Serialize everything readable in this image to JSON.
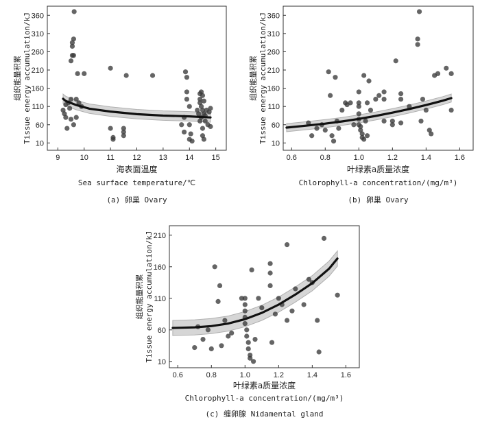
{
  "chart_data": [
    {
      "id": "a",
      "type": "scatter",
      "caption": "(a) 卵巢 Ovary",
      "xlabel_cn": "海表面温度",
      "xlabel_en": "Sea surface temperature/℃",
      "ylabel_cn": "组织能量积累",
      "ylabel_en": "Tissue energy accumulation/kJ",
      "xlim": [
        8.6,
        15.4
      ],
      "ylim": [
        -10,
        385
      ],
      "xticks": [
        9,
        10,
        11,
        12,
        13,
        14,
        15
      ],
      "yticks": [
        10,
        60,
        110,
        160,
        210,
        260,
        310,
        360
      ],
      "points": [
        [
          9.2,
          100
        ],
        [
          9.25,
          90
        ],
        [
          9.3,
          115
        ],
        [
          9.3,
          80
        ],
        [
          9.35,
          50
        ],
        [
          9.4,
          120
        ],
        [
          9.45,
          105
        ],
        [
          9.5,
          235
        ],
        [
          9.5,
          130
        ],
        [
          9.5,
          75
        ],
        [
          9.55,
          285
        ],
        [
          9.55,
          275
        ],
        [
          9.55,
          250
        ],
        [
          9.6,
          295
        ],
        [
          9.6,
          250
        ],
        [
          9.6,
          60
        ],
        [
          9.62,
          370
        ],
        [
          9.7,
          130
        ],
        [
          9.7,
          80
        ],
        [
          9.75,
          200
        ],
        [
          9.8,
          120
        ],
        [
          9.9,
          110
        ],
        [
          10.0,
          200
        ],
        [
          11.0,
          215
        ],
        [
          11.0,
          50
        ],
        [
          11.1,
          25
        ],
        [
          11.1,
          20
        ],
        [
          11.5,
          50
        ],
        [
          11.5,
          40
        ],
        [
          11.5,
          30
        ],
        [
          11.6,
          195
        ],
        [
          12.6,
          195
        ],
        [
          13.7,
          60
        ],
        [
          13.8,
          80
        ],
        [
          13.8,
          40
        ],
        [
          13.85,
          205
        ],
        [
          13.9,
          190
        ],
        [
          13.9,
          150
        ],
        [
          13.9,
          130
        ],
        [
          14.0,
          110
        ],
        [
          14.0,
          60
        ],
        [
          14.0,
          20
        ],
        [
          14.05,
          35
        ],
        [
          14.1,
          15
        ],
        [
          14.3,
          100
        ],
        [
          14.35,
          90
        ],
        [
          14.4,
          145
        ],
        [
          14.4,
          130
        ],
        [
          14.4,
          120
        ],
        [
          14.4,
          70
        ],
        [
          14.45,
          150
        ],
        [
          14.45,
          110
        ],
        [
          14.45,
          80
        ],
        [
          14.5,
          140
        ],
        [
          14.5,
          100
        ],
        [
          14.5,
          50
        ],
        [
          14.5,
          30
        ],
        [
          14.55,
          125
        ],
        [
          14.55,
          90
        ],
        [
          14.55,
          20
        ],
        [
          14.6,
          85
        ],
        [
          14.6,
          70
        ],
        [
          14.65,
          100
        ],
        [
          14.7,
          60
        ],
        [
          14.75,
          95
        ],
        [
          14.8,
          105
        ],
        [
          14.8,
          55
        ]
      ],
      "fit": {
        "x": [
          9.2,
          9.3,
          9.7,
          10.2,
          11.0,
          12.0,
          13.0,
          14.0,
          14.8
        ],
        "y": [
          131,
          125,
          114,
          104,
          96,
          89,
          85,
          83,
          80
        ],
        "band": 13
      }
    },
    {
      "id": "b",
      "type": "scatter",
      "caption": "(b) 卵巢 Ovary",
      "xlabel_cn": "叶绿素a质量浓度",
      "xlabel_en": "Chlorophyll-a concentration/(mg/m³)",
      "ylabel_cn": "组织能量积累",
      "ylabel_en": "Tissue energy accumulation/kJ",
      "xlim": [
        0.55,
        1.68
      ],
      "ylim": [
        -10,
        385
      ],
      "xticks": [
        "0.6",
        "0.8",
        "1.0",
        "1.2",
        "1.4",
        "1.6"
      ],
      "yticks": [
        10,
        60,
        110,
        160,
        210,
        260,
        310,
        360
      ],
      "points": [
        [
          0.7,
          65
        ],
        [
          0.72,
          30
        ],
        [
          0.75,
          50
        ],
        [
          0.78,
          60
        ],
        [
          0.8,
          45
        ],
        [
          0.82,
          205
        ],
        [
          0.83,
          140
        ],
        [
          0.84,
          30
        ],
        [
          0.85,
          15
        ],
        [
          0.86,
          190
        ],
        [
          0.87,
          70
        ],
        [
          0.88,
          50
        ],
        [
          0.9,
          100
        ],
        [
          0.92,
          120
        ],
        [
          0.93,
          115
        ],
        [
          0.95,
          120
        ],
        [
          0.97,
          60
        ],
        [
          1.0,
          150
        ],
        [
          1.0,
          120
        ],
        [
          1.0,
          110
        ],
        [
          1.0,
          90
        ],
        [
          1.0,
          75
        ],
        [
          1.0,
          60
        ],
        [
          1.01,
          55
        ],
        [
          1.01,
          45
        ],
        [
          1.02,
          35
        ],
        [
          1.02,
          25
        ],
        [
          1.03,
          20
        ],
        [
          1.03,
          195
        ],
        [
          1.04,
          70
        ],
        [
          1.05,
          120
        ],
        [
          1.05,
          30
        ],
        [
          1.06,
          180
        ],
        [
          1.07,
          100
        ],
        [
          1.1,
          130
        ],
        [
          1.12,
          140
        ],
        [
          1.15,
          150
        ],
        [
          1.15,
          130
        ],
        [
          1.15,
          70
        ],
        [
          1.2,
          70
        ],
        [
          1.2,
          60
        ],
        [
          1.22,
          235
        ],
        [
          1.25,
          145
        ],
        [
          1.25,
          130
        ],
        [
          1.25,
          65
        ],
        [
          1.3,
          110
        ],
        [
          1.35,
          295
        ],
        [
          1.35,
          280
        ],
        [
          1.36,
          370
        ],
        [
          1.37,
          70
        ],
        [
          1.38,
          130
        ],
        [
          1.4,
          100
        ],
        [
          1.42,
          45
        ],
        [
          1.43,
          35
        ],
        [
          1.45,
          195
        ],
        [
          1.47,
          200
        ],
        [
          1.52,
          215
        ],
        [
          1.55,
          200
        ],
        [
          1.55,
          100
        ]
      ],
      "fit": {
        "x": [
          0.57,
          0.7,
          0.8,
          0.9,
          1.0,
          1.1,
          1.2,
          1.3,
          1.4,
          1.5,
          1.55
        ],
        "y": [
          52,
          58,
          63,
          69,
          76,
          84,
          93,
          103,
          114,
          126,
          133
        ],
        "band": 11
      }
    },
    {
      "id": "c",
      "type": "scatter",
      "caption": "(c) 缠卵腺 Nidamental gland",
      "xlabel_cn": "叶绿素a质量浓度",
      "xlabel_en": "Chlorophyll-a concentration/(mg/m³)",
      "ylabel_cn": "组织能量积累",
      "ylabel_en": "Tissue energy accumulation/kJ",
      "xlim": [
        0.55,
        1.68
      ],
      "ylim": [
        0,
        225
      ],
      "xticks": [
        "0.6",
        "0.8",
        "1.0",
        "1.2",
        "1.4",
        "1.6"
      ],
      "yticks": [
        10,
        60,
        110,
        160,
        210
      ],
      "points": [
        [
          0.7,
          32
        ],
        [
          0.72,
          65
        ],
        [
          0.75,
          45
        ],
        [
          0.78,
          60
        ],
        [
          0.8,
          30
        ],
        [
          0.82,
          160
        ],
        [
          0.84,
          105
        ],
        [
          0.85,
          130
        ],
        [
          0.86,
          35
        ],
        [
          0.88,
          75
        ],
        [
          0.9,
          50
        ],
        [
          0.92,
          55
        ],
        [
          0.98,
          110
        ],
        [
          1.0,
          110
        ],
        [
          1.0,
          100
        ],
        [
          1.0,
          90
        ],
        [
          1.0,
          80
        ],
        [
          1.0,
          70
        ],
        [
          1.01,
          60
        ],
        [
          1.01,
          50
        ],
        [
          1.02,
          40
        ],
        [
          1.02,
          30
        ],
        [
          1.03,
          20
        ],
        [
          1.03,
          15
        ],
        [
          1.04,
          155
        ],
        [
          1.05,
          10
        ],
        [
          1.06,
          45
        ],
        [
          1.08,
          110
        ],
        [
          1.1,
          95
        ],
        [
          1.15,
          165
        ],
        [
          1.15,
          150
        ],
        [
          1.15,
          130
        ],
        [
          1.16,
          40
        ],
        [
          1.18,
          85
        ],
        [
          1.2,
          110
        ],
        [
          1.22,
          100
        ],
        [
          1.25,
          195
        ],
        [
          1.25,
          75
        ],
        [
          1.28,
          90
        ],
        [
          1.3,
          125
        ],
        [
          1.35,
          100
        ],
        [
          1.38,
          140
        ],
        [
          1.4,
          135
        ],
        [
          1.43,
          75
        ],
        [
          1.44,
          25
        ],
        [
          1.47,
          205
        ],
        [
          1.55,
          115
        ]
      ],
      "fit": {
        "x": [
          0.57,
          0.7,
          0.8,
          0.9,
          1.0,
          1.1,
          1.2,
          1.3,
          1.4,
          1.5,
          1.55
        ],
        "y": [
          63,
          64,
          66,
          70,
          77,
          87,
          100,
          116,
          134,
          157,
          173
        ],
        "band": 12
      }
    }
  ]
}
